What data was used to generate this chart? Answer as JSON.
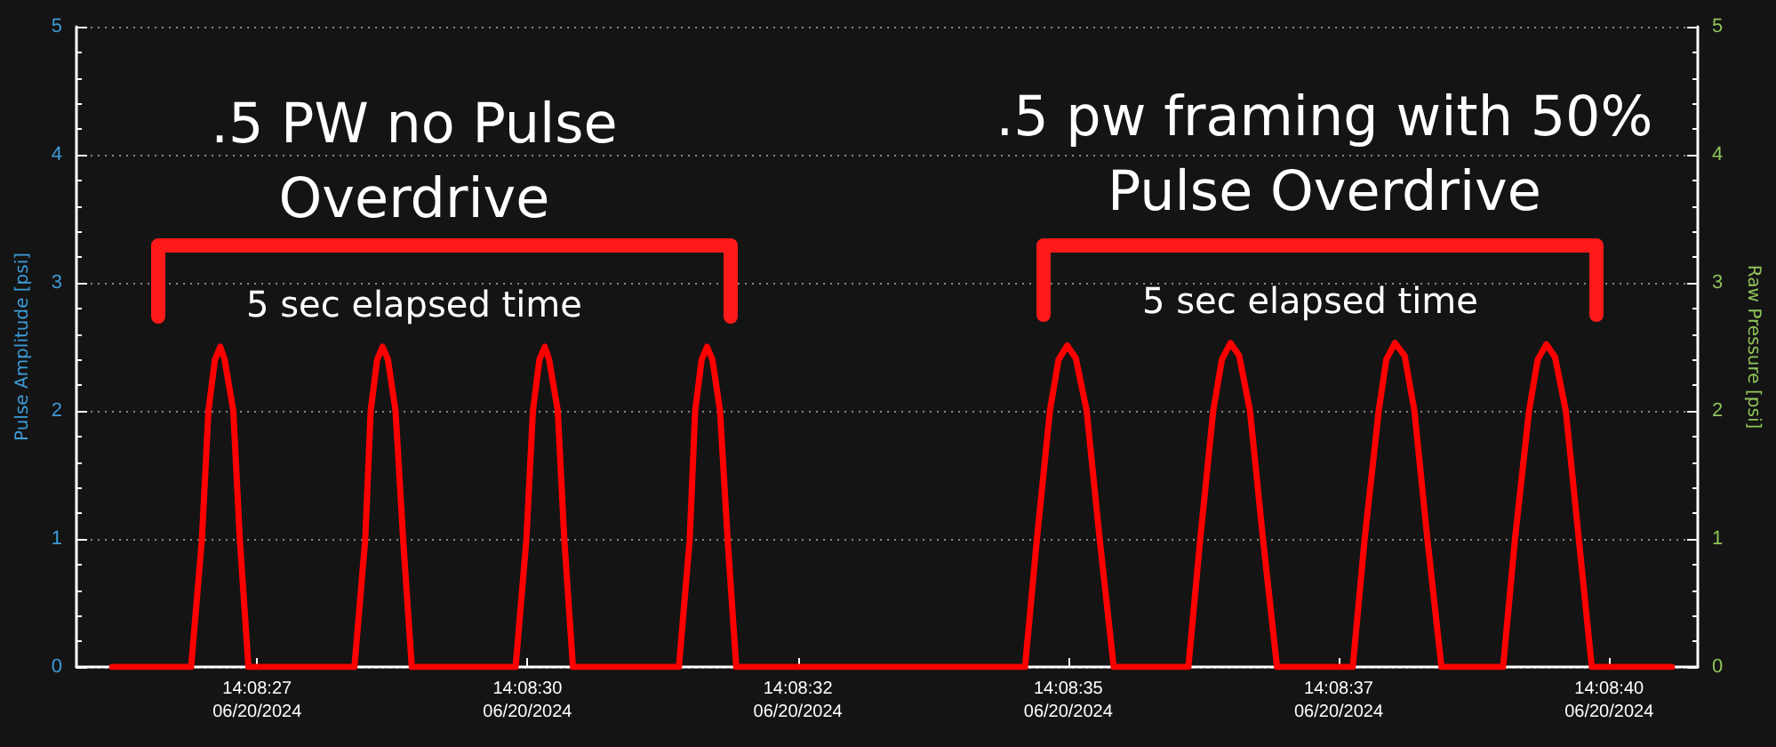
{
  "chart_data": {
    "type": "line",
    "ylabel": "Pulse Amplitude [psi]",
    "y2label": "Raw Pressure [psi]",
    "annotations": [
      ".5 PW no Pulse Overdrive",
      "5 sec elapsed time",
      ".5 pw framing with 50% Pulse Overdrive",
      "5 sec elapsed time"
    ],
    "x": [
      "2024-06-20T14:08:26.16",
      "2024-06-20T14:08:26.89",
      "2024-06-20T14:08:26.99",
      "2024-06-20T14:08:27.05",
      "2024-06-20T14:08:27.11",
      "2024-06-20T14:08:27.16",
      "2024-06-20T14:08:27.20",
      "2024-06-20T14:08:27.28",
      "2024-06-20T14:08:27.34",
      "2024-06-20T14:08:27.42",
      "2024-06-20T14:08:28.40",
      "2024-06-20T14:08:28.50",
      "2024-06-20T14:08:28.55",
      "2024-06-20T14:08:28.61",
      "2024-06-20T14:08:28.66",
      "2024-06-20T14:08:28.71",
      "2024-06-20T14:08:28.78",
      "2024-06-20T14:08:28.85",
      "2024-06-20T14:08:28.93",
      "2024-06-20T14:08:29.89",
      "2024-06-20T14:08:29.99",
      "2024-06-20T14:08:30.05",
      "2024-06-20T14:08:30.11",
      "2024-06-20T14:08:30.16",
      "2024-06-20T14:08:30.20",
      "2024-06-20T14:08:30.28",
      "2024-06-20T14:08:30.34",
      "2024-06-20T14:08:30.42",
      "2024-06-20T14:08:31.40",
      "2024-06-20T14:08:31.50",
      "2024-06-20T14:08:31.55",
      "2024-06-20T14:08:31.61",
      "2024-06-20T14:08:31.66",
      "2024-06-20T14:08:31.71",
      "2024-06-20T14:08:31.78",
      "2024-06-20T14:08:31.85",
      "2024-06-20T14:08:31.93",
      "2024-06-20T14:08:34.60",
      "2024-06-20T14:08:34.71",
      "2024-06-20T14:08:34.83",
      "2024-06-20T14:08:34.91",
      "2024-06-20T14:08:34.99",
      "2024-06-20T14:08:35.07",
      "2024-06-20T14:08:35.17",
      "2024-06-20T14:08:35.29",
      "2024-06-20T14:08:35.42",
      "2024-06-20T14:08:36.11",
      "2024-06-20T14:08:36.22",
      "2024-06-20T14:08:36.34",
      "2024-06-20T14:08:36.42",
      "2024-06-20T14:08:36.50",
      "2024-06-20T14:08:36.58",
      "2024-06-20T14:08:36.68",
      "2024-06-20T14:08:36.80",
      "2024-06-20T14:08:36.93",
      "2024-06-20T14:08:37.63",
      "2024-06-20T14:08:37.74",
      "2024-06-20T14:08:37.87",
      "2024-06-20T14:08:37.94",
      "2024-06-20T14:08:38.02",
      "2024-06-20T14:08:38.11",
      "2024-06-20T14:08:38.20",
      "2024-06-20T14:08:38.32",
      "2024-06-20T14:08:38.45",
      "2024-06-20T14:08:39.02",
      "2024-06-20T14:08:39.13",
      "2024-06-20T14:08:39.26",
      "2024-06-20T14:08:39.34",
      "2024-06-20T14:08:39.42",
      "2024-06-20T14:08:39.50",
      "2024-06-20T14:08:39.60",
      "2024-06-20T14:08:39.72",
      "2024-06-20T14:08:39.84",
      "2024-06-20T14:08:40.58"
    ],
    "series": [
      {
        "color": "#ff0000",
        "values": [
          0,
          0,
          1,
          2,
          2.4,
          2.5,
          2.4,
          2,
          1,
          0,
          0,
          1,
          2,
          2.4,
          2.5,
          2.4,
          2,
          1,
          0,
          0,
          1,
          2,
          2.4,
          2.5,
          2.4,
          2,
          1,
          0,
          0,
          1,
          2,
          2.4,
          2.5,
          2.4,
          2,
          1,
          0,
          0,
          1,
          2,
          2.4,
          2.51,
          2.41,
          2,
          1,
          0,
          0,
          1,
          2,
          2.4,
          2.53,
          2.43,
          2,
          1,
          0,
          0,
          1,
          2,
          2.4,
          2.53,
          2.43,
          2,
          1,
          0,
          0,
          1,
          2,
          2.4,
          2.52,
          2.42,
          2,
          1,
          0,
          0
        ]
      }
    ],
    "xlim": [
      "2024-06-20T14:08:25.83",
      "2024-06-20T14:08:40.82"
    ],
    "xticks": [
      {
        "value": "2024-06-20T14:08:27.5",
        "label": "14:08:27\n06/20/2024"
      },
      {
        "value": "2024-06-20T14:08:30",
        "label": "14:08:30\n06/20/2024"
      },
      {
        "value": "2024-06-20T14:08:32.5",
        "label": "14:08:32\n06/20/2024"
      },
      {
        "value": "2024-06-20T14:08:35",
        "label": "14:08:35\n06/20/2024"
      },
      {
        "value": "2024-06-20T14:08:37.5",
        "label": "14:08:37\n06/20/2024"
      },
      {
        "value": "2024-06-20T14:08:40",
        "label": "14:08:40\n06/20/2024"
      }
    ],
    "ylim": [
      0,
      5
    ],
    "yticks": [
      0,
      1,
      2,
      3,
      4,
      5
    ],
    "y2lim": [
      0,
      5
    ],
    "y2ticks": [
      0,
      1,
      2,
      3,
      4,
      5
    ],
    "grid": "y",
    "marker": "none",
    "line_style": "solid"
  }
}
